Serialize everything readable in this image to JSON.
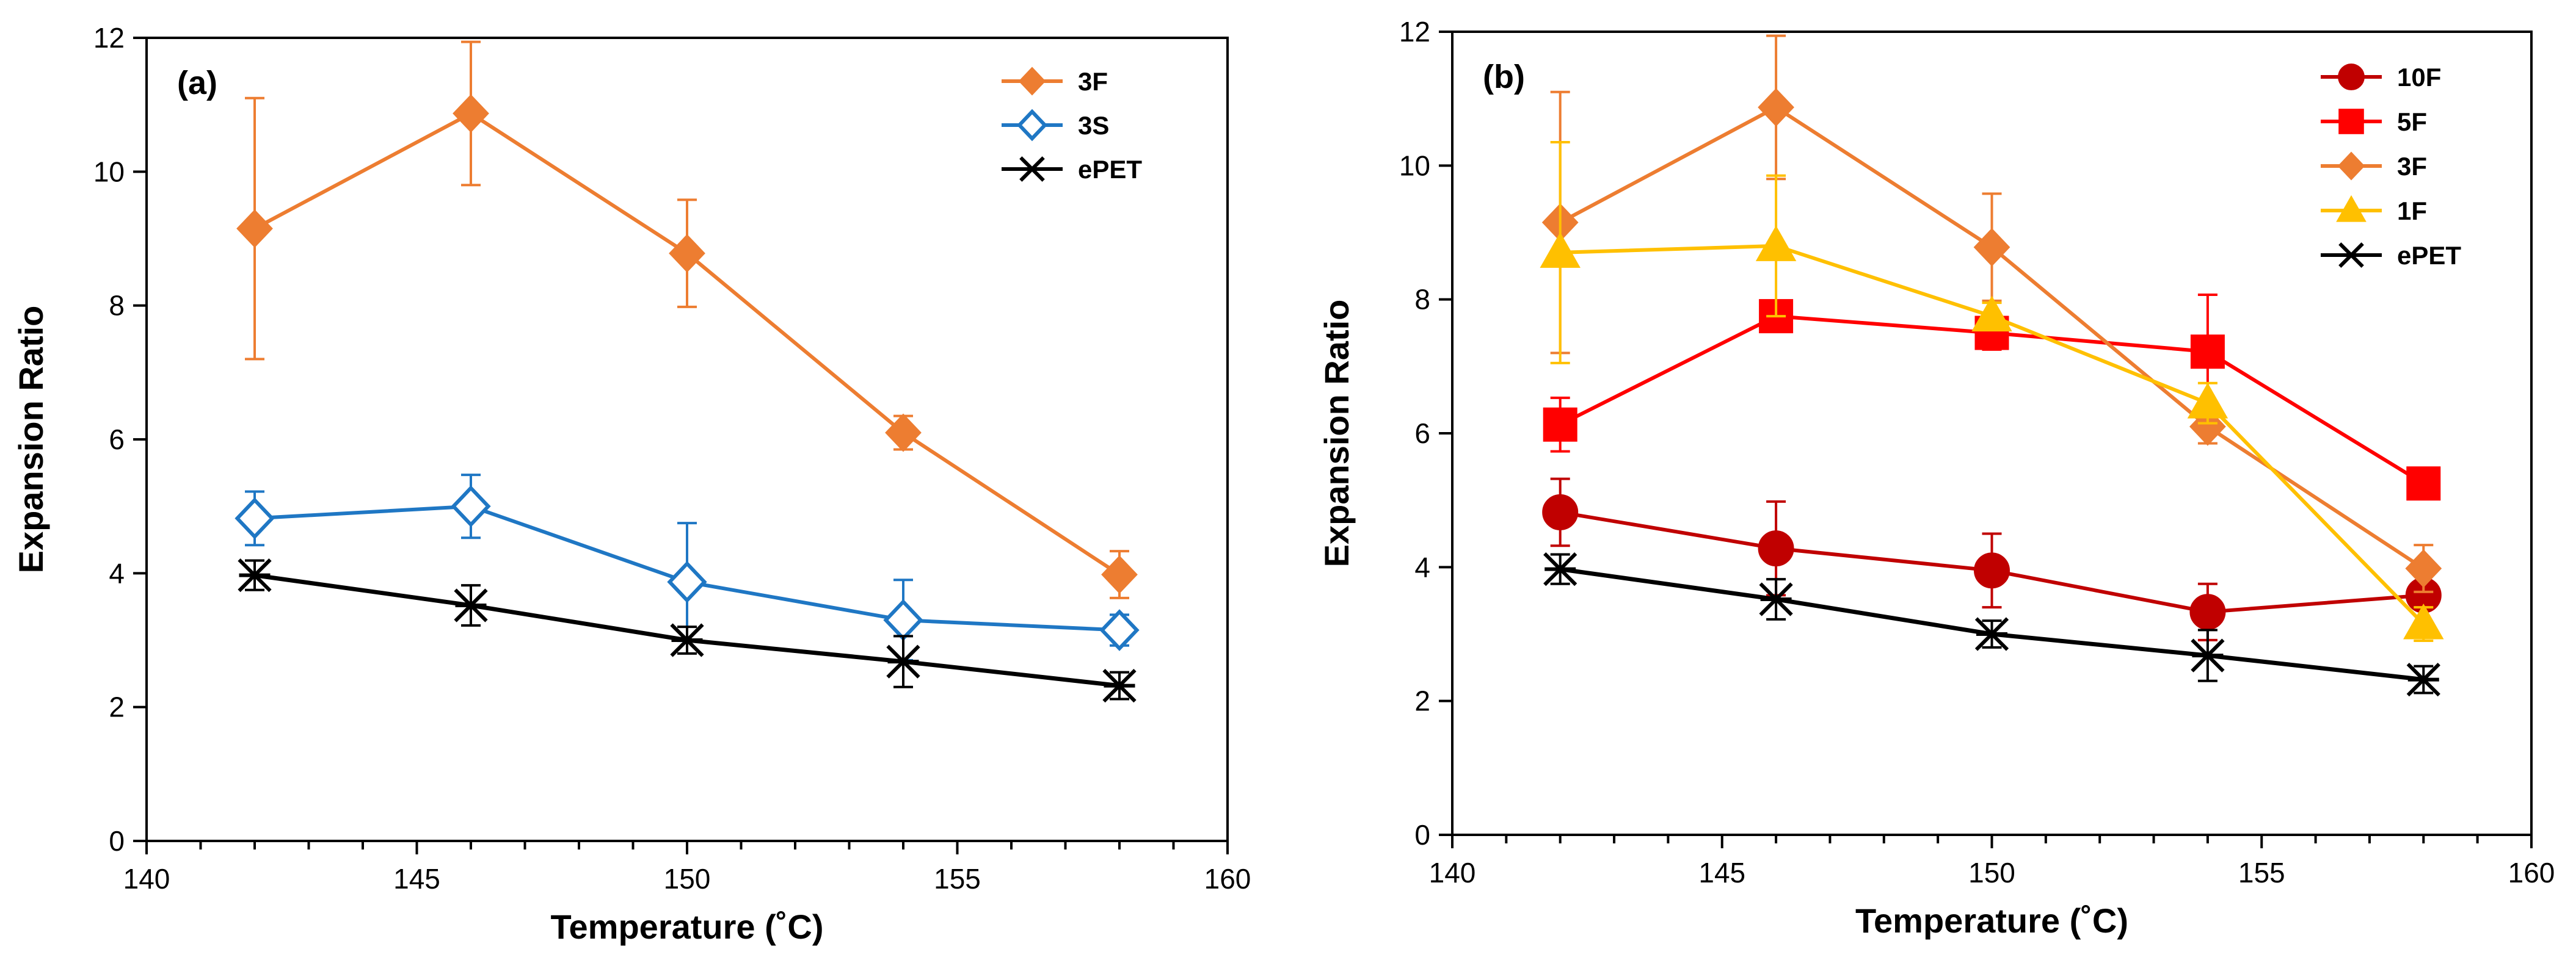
{
  "chart_data": [
    {
      "type": "line",
      "panel_label": "(a)",
      "xlabel": "Temperature (˚C)",
      "ylabel": "Expansion Ratio",
      "xlim": [
        140,
        160
      ],
      "ylim": [
        0,
        12
      ],
      "xticks": [
        "140",
        "145",
        "150",
        "155",
        "160"
      ],
      "yticks": [
        "0",
        "2",
        "4",
        "6",
        "8",
        "10",
        "12"
      ],
      "legend_position": "top-right",
      "x": [
        142,
        146,
        150,
        154,
        158
      ],
      "series": [
        {
          "name": "3F",
          "color": "#ED7D31",
          "marker": "diamond-filled",
          "values": [
            9.15,
            10.87,
            8.78,
            6.1,
            3.98
          ],
          "errors": [
            1.95,
            1.07,
            0.8,
            0.25,
            0.35
          ]
        },
        {
          "name": "3S",
          "color": "#1F77C4",
          "marker": "diamond-open",
          "values": [
            4.82,
            5.0,
            3.87,
            3.3,
            3.15
          ],
          "errors": [
            0.4,
            0.47,
            0.88,
            0.6,
            0.23
          ]
        },
        {
          "name": "ePET",
          "color": "#000000",
          "marker": "asterisk",
          "values": [
            3.97,
            3.52,
            3.0,
            2.68,
            2.32
          ],
          "errors": [
            0.22,
            0.3,
            0.2,
            0.38,
            0.2
          ]
        }
      ]
    },
    {
      "type": "line",
      "panel_label": "(b)",
      "xlabel": "Temperature (˚C)",
      "ylabel": "Expansion Ratio",
      "xlim": [
        140,
        160
      ],
      "ylim": [
        0,
        12
      ],
      "xticks": [
        "140",
        "145",
        "150",
        "155",
        "160"
      ],
      "yticks": [
        "0",
        "2",
        "4",
        "6",
        "8",
        "10",
        "12"
      ],
      "legend_position": "top-right",
      "x": [
        142,
        146,
        150,
        154,
        158
      ],
      "series": [
        {
          "name": "10F",
          "color": "#C00000",
          "marker": "circle",
          "values": [
            4.82,
            4.28,
            3.95,
            3.33,
            3.58
          ],
          "errors": [
            0.5,
            0.7,
            0.55,
            0.42,
            0.15
          ]
        },
        {
          "name": "5F",
          "color": "#FF0000",
          "marker": "square",
          "values": [
            6.13,
            7.75,
            7.5,
            7.22,
            5.25
          ],
          "errors": [
            0.4,
            0.15,
            0.25,
            0.85,
            0.12
          ]
        },
        {
          "name": "3F",
          "color": "#ED7D31",
          "marker": "diamond-filled",
          "values": [
            9.15,
            10.87,
            8.78,
            6.1,
            3.98
          ],
          "errors": [
            1.95,
            1.07,
            0.8,
            0.25,
            0.35
          ]
        },
        {
          "name": "1F",
          "color": "#FFC000",
          "marker": "triangle",
          "values": [
            8.7,
            8.8,
            7.75,
            6.45,
            3.15
          ],
          "errors": [
            1.65,
            1.05,
            0.2,
            0.3,
            0.25
          ]
        },
        {
          "name": "ePET",
          "color": "#000000",
          "marker": "asterisk",
          "values": [
            3.97,
            3.52,
            3.0,
            2.68,
            2.32
          ],
          "errors": [
            0.22,
            0.3,
            0.2,
            0.38,
            0.2
          ]
        }
      ]
    }
  ]
}
